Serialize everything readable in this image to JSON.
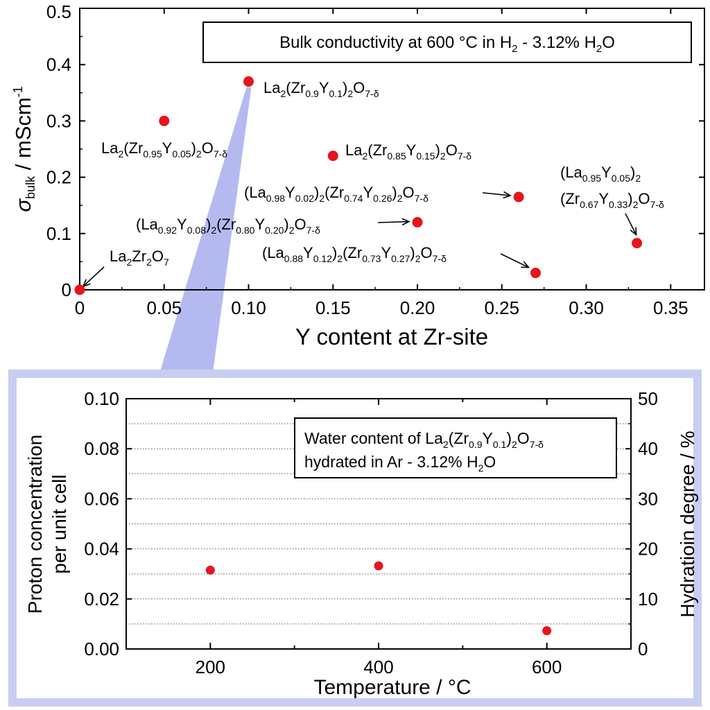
{
  "chart_data": [
    {
      "type": "scatter",
      "xlabel": "Y content at Zr-site",
      "ylabel": {
        "symbol": "σ",
        "sub": "bulk",
        "unit": " / mScm",
        "sup": "-1"
      },
      "xlim": [
        0,
        0.37
      ],
      "ylim": [
        0,
        0.5
      ],
      "x_ticks": [
        0,
        0.05,
        0.1,
        0.15,
        0.2,
        0.25,
        0.3,
        0.35
      ],
      "x_tick_labels": [
        "0",
        "0.05",
        "0.10",
        "0.15",
        "0.20",
        "0.25",
        "0.30",
        "0.35"
      ],
      "y_ticks": [
        0,
        0.1,
        0.2,
        0.3,
        0.4,
        0.5
      ],
      "y_tick_labels": [
        "0",
        "0.1",
        "0.2",
        "0.3",
        "0.4",
        "0.5"
      ],
      "grid": false,
      "marker_color": "#e8141b",
      "title_box": [
        {
          "t": "Bulk conductivity at 600 °C in H"
        },
        {
          "t": "2",
          "sub": true
        },
        {
          "t": " - 3.12% H"
        },
        {
          "t": "2",
          "sub": true
        },
        {
          "t": "O"
        }
      ],
      "points": [
        {
          "x": 0.0,
          "y": 0.0,
          "label": [
            {
              "t": "La"
            },
            {
              "t": "2",
              "sub": true
            },
            {
              "t": "Zr"
            },
            {
              "t": "2",
              "sub": true
            },
            {
              "t": "O"
            },
            {
              "t": "7",
              "sub": true
            }
          ]
        },
        {
          "x": 0.05,
          "y": 0.3,
          "label": [
            {
              "t": "La"
            },
            {
              "t": "2",
              "sub": true
            },
            {
              "t": "(Zr"
            },
            {
              "t": "0.95",
              "sub": true
            },
            {
              "t": "Y"
            },
            {
              "t": "0.05",
              "sub": true
            },
            {
              "t": ")"
            },
            {
              "t": "2",
              "sub": true
            },
            {
              "t": "O"
            },
            {
              "t": "7-δ",
              "sub": true
            }
          ]
        },
        {
          "x": 0.1,
          "y": 0.37,
          "label": [
            {
              "t": "La"
            },
            {
              "t": "2",
              "sub": true
            },
            {
              "t": "(Zr"
            },
            {
              "t": "0.9",
              "sub": true
            },
            {
              "t": "Y"
            },
            {
              "t": "0.1",
              "sub": true
            },
            {
              "t": ")"
            },
            {
              "t": "2",
              "sub": true
            },
            {
              "t": "O"
            },
            {
              "t": "7-δ",
              "sub": true
            }
          ]
        },
        {
          "x": 0.15,
          "y": 0.238,
          "label": [
            {
              "t": "La"
            },
            {
              "t": "2",
              "sub": true
            },
            {
              "t": "(Zr"
            },
            {
              "t": "0.85",
              "sub": true
            },
            {
              "t": "Y"
            },
            {
              "t": "0.15",
              "sub": true
            },
            {
              "t": ")"
            },
            {
              "t": "2",
              "sub": true
            },
            {
              "t": "O"
            },
            {
              "t": "7-δ",
              "sub": true
            }
          ]
        },
        {
          "x": 0.2,
          "y": 0.12,
          "label": [
            {
              "t": "(La"
            },
            {
              "t": "0.92",
              "sub": true
            },
            {
              "t": "Y"
            },
            {
              "t": "0.08",
              "sub": true
            },
            {
              "t": ")"
            },
            {
              "t": "2",
              "sub": true
            },
            {
              "t": "(Zr"
            },
            {
              "t": "0.80",
              "sub": true
            },
            {
              "t": "Y"
            },
            {
              "t": "0.20",
              "sub": true
            },
            {
              "t": ")"
            },
            {
              "t": "2",
              "sub": true
            },
            {
              "t": "O"
            },
            {
              "t": "7-δ",
              "sub": true
            }
          ]
        },
        {
          "x": 0.26,
          "y": 0.165,
          "label": [
            {
              "t": "(La"
            },
            {
              "t": "0.98",
              "sub": true
            },
            {
              "t": "Y"
            },
            {
              "t": "0.02",
              "sub": true
            },
            {
              "t": ")"
            },
            {
              "t": "2",
              "sub": true
            },
            {
              "t": "(Zr"
            },
            {
              "t": "0.74",
              "sub": true
            },
            {
              "t": "Y"
            },
            {
              "t": "0.26",
              "sub": true
            },
            {
              "t": ")"
            },
            {
              "t": "2",
              "sub": true
            },
            {
              "t": "O"
            },
            {
              "t": "7-δ",
              "sub": true
            }
          ]
        },
        {
          "x": 0.27,
          "y": 0.03,
          "label": [
            {
              "t": "(La"
            },
            {
              "t": "0.88",
              "sub": true
            },
            {
              "t": "Y"
            },
            {
              "t": "0.12",
              "sub": true
            },
            {
              "t": ")"
            },
            {
              "t": "2",
              "sub": true
            },
            {
              "t": "(Zr"
            },
            {
              "t": "0.73",
              "sub": true
            },
            {
              "t": "Y"
            },
            {
              "t": "0.27",
              "sub": true
            },
            {
              "t": ")"
            },
            {
              "t": "2",
              "sub": true
            },
            {
              "t": "O"
            },
            {
              "t": "7-δ",
              "sub": true
            }
          ]
        },
        {
          "x": 0.33,
          "y": 0.083,
          "label_lines": [
            [
              {
                "t": "(La"
              },
              {
                "t": "0.95",
                "sub": true
              },
              {
                "t": "Y"
              },
              {
                "t": "0.05",
                "sub": true
              },
              {
                "t": ")"
              },
              {
                "t": "2",
                "sub": true
              }
            ],
            [
              {
                "t": "(Zr"
              },
              {
                "t": "0.67",
                "sub": true
              },
              {
                "t": "Y"
              },
              {
                "t": "0.33",
                "sub": true
              },
              {
                "t": ")"
              },
              {
                "t": "2",
                "sub": true
              },
              {
                "t": "O"
              },
              {
                "t": "7-δ",
                "sub": true
              }
            ]
          ]
        }
      ]
    },
    {
      "type": "scatter",
      "xlabel": "Temperature / °C",
      "ylabel_lines": [
        "Proton concentration",
        "per unit cell"
      ],
      "y2label": "Hydratioin degree / %",
      "xlim": [
        100,
        700
      ],
      "ylim": [
        0,
        0.1
      ],
      "y2lim": [
        0,
        50
      ],
      "x_ticks": [
        200,
        400,
        600
      ],
      "x_tick_labels": [
        "200",
        "400",
        "600"
      ],
      "y_ticks": [
        0,
        0.02,
        0.04,
        0.06,
        0.08,
        0.1
      ],
      "y_tick_labels": [
        "0.00",
        "0.02",
        "0.04",
        "0.06",
        "0.08",
        "0.10"
      ],
      "y2_ticks": [
        0,
        10,
        20,
        30,
        40,
        50
      ],
      "y2_tick_labels": [
        "0",
        "10",
        "20",
        "30",
        "40",
        "50"
      ],
      "grid": "horizontal dotted",
      "marker_color": "#e8141b",
      "title_box_lines": [
        [
          {
            "t": "Water content of La"
          },
          {
            "t": "2",
            "sub": true
          },
          {
            "t": "(Zr"
          },
          {
            "t": "0.9",
            "sub": true
          },
          {
            "t": "Y"
          },
          {
            "t": "0.1",
            "sub": true
          },
          {
            "t": ")"
          },
          {
            "t": "2",
            "sub": true
          },
          {
            "t": "O"
          },
          {
            "t": "7-δ",
            "sub": true
          }
        ],
        [
          {
            "t": "hydrated in Ar - 3.12% H"
          },
          {
            "t": "2",
            "sub": true
          },
          {
            "t": "O"
          }
        ]
      ],
      "points": [
        {
          "x": 200,
          "y": 0.0315
        },
        {
          "x": 400,
          "y": 0.0332
        },
        {
          "x": 600,
          "y": 0.0073
        }
      ]
    }
  ],
  "inset_frame_color": "#c8cdf2",
  "zoom_wedge_color": "#b4baf0"
}
